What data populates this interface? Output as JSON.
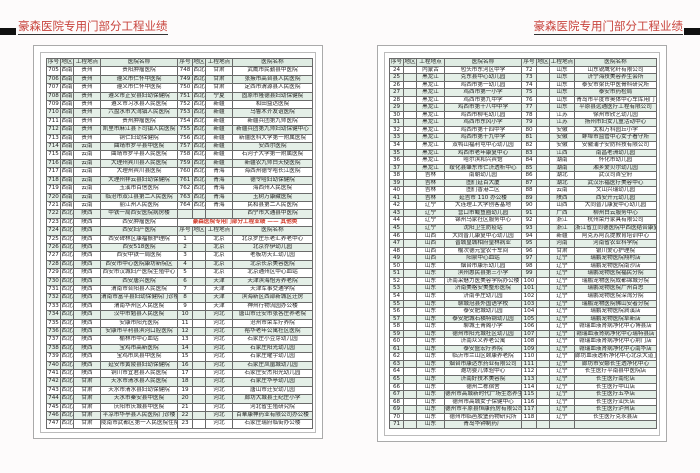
{
  "header": {
    "title_left": "豪森医院专用门部分工程业绩",
    "title_right": "豪森医院专用门部分工程业绩"
  },
  "colors": {
    "title": "#c8433c",
    "row_tint": "#e4efe7",
    "section_title": "#d23a2a"
  },
  "columns": [
    "序号",
    "地区",
    "工程地点",
    "医院名称",
    "序号",
    "地区",
    "工程地点",
    "医院名称"
  ],
  "left_rows": [
    [
      "705",
      "西南",
      "贵州",
      "贵阳肿瘤医院",
      "748",
      "西北",
      "甘肃",
      "武威市民勤县中医院"
    ],
    [
      "706",
      "西南",
      "贵州",
      "遵义市仁怀中医院",
      "749",
      "西北",
      "甘肃",
      "张掖市高台县人民医院"
    ],
    [
      "707",
      "西南",
      "贵州",
      "遵义市仁怀中医院",
      "750",
      "西北",
      "甘肃",
      "定西市渭源县人民医院"
    ],
    [
      "708",
      "西南",
      "贵州",
      "遵义市正安县妇幼保健院",
      "751",
      "西北",
      "宁夏",
      "固原市隆德县妇幼保健院"
    ],
    [
      "709",
      "西南",
      "贵州",
      "遵义市习水县人民医院",
      "752",
      "西北",
      "新疆",
      "和田益达医院"
    ],
    [
      "710",
      "西南",
      "贵州",
      "六盘水市大湾镇人民医院",
      "753",
      "西北",
      "新疆",
      "乌鲁木齐友谊医院"
    ],
    [
      "711",
      "西南",
      "贵州",
      "贵州肿瘤医院",
      "754",
      "西北",
      "新疆",
      "新疆兵团第九师医院"
    ],
    [
      "712",
      "西南",
      "贵州",
      "凯里市麻江县下司镇人民医院",
      "755",
      "西北",
      "新疆",
      "新疆兵团第九师妇幼保健中心"
    ],
    [
      "713",
      "西南",
      "贵州",
      "铜仁妇幼保健院",
      "756",
      "西北",
      "新疆",
      "新疆医科大学第一附属医院"
    ],
    [
      "714",
      "西南",
      "云南",
      "曲靖市罗平县中医院",
      "757",
      "西北",
      "新疆",
      "安西尔医院"
    ],
    [
      "715",
      "西南",
      "云南",
      "曲靖市罗平县人民医院",
      "758",
      "西北",
      "新疆",
      "石河子大学第一附属医院"
    ],
    [
      "716",
      "西南",
      "云南",
      "大理州宾川县人民医院",
      "759",
      "西北",
      "新疆",
      "新疆农九师白天使医院"
    ],
    [
      "717",
      "西南",
      "云南",
      "大理州宾川县医院",
      "760",
      "西北",
      "青海",
      "海西州德令哈长江医院"
    ],
    [
      "718",
      "西南",
      "云南",
      "大理州祥云县妇幼保健院",
      "761",
      "西北",
      "青海",
      "德令哈妇幼保健院"
    ],
    [
      "719",
      "西南",
      "云南",
      "玉溪市百信医院",
      "762",
      "西北",
      "青海",
      "海西州人民医院"
    ],
    [
      "720",
      "西南",
      "云南",
      "临沧市双江县第二人民医院",
      "763",
      "西北",
      "青海",
      "玉树万康藏医院"
    ],
    [
      "721",
      "西南",
      "云南",
      "丽江州人民医院",
      "764",
      "西北",
      "青海",
      "民和县第二人民医院"
    ],
    [
      "722",
      "西北",
      "陕西",
      "中铁一局西安医院病房楼",
      "",
      "",
      "",
      "西宁市大通县中医院"
    ],
    [
      "723",
      "西北",
      "陕西",
      "西安肿瘤医院",
      "豪森医院专用门部分工程业绩 —— 其他类"
    ],
    [
      "724",
      "西北",
      "陕西",
      "西安妇产医院",
      "序号",
      "地区",
      "工程地点",
      "医院名称"
    ],
    [
      "725",
      "西北",
      "陕西",
      "西安碑林区康福振护理院",
      "1",
      "",
      "北京",
      "北京罗庄乐老汇养老中心"
    ],
    [
      "726",
      "西北",
      "陕西",
      "西安518医院",
      "2",
      "",
      "北京",
      "北京乔伊幼儿园"
    ],
    [
      "727",
      "西北",
      "陕西",
      "西安中铁一局医院",
      "3",
      "",
      "北京",
      "老板坊天汇幼儿园"
    ],
    [
      "728",
      "西北",
      "陕西",
      "西安市中心医院康坊新院区",
      "4",
      "",
      "北京",
      "北京长京美容医院"
    ],
    [
      "729",
      "西北",
      "陕西",
      "西安市汉城妇产医院生殖中心",
      "5",
      "",
      "北京",
      "北京通州区中心血站"
    ],
    [
      "730",
      "西北",
      "陕西",
      "西安唐兴医院",
      "6",
      "",
      "天津",
      "天津滨海怡芳养老院"
    ],
    [
      "731",
      "西北",
      "陕西",
      "渭南市合阳县人民医院",
      "7",
      "",
      "天津",
      "天津军事交通学院"
    ],
    [
      "732",
      "西北",
      "陕西",
      "渭南市富平县妇幼保健院门诊楼",
      "8",
      "",
      "天津",
      "滨海新区西部新城区迁房"
    ],
    [
      "733",
      "西北",
      "陕西",
      "渭南华州区人民医院",
      "9",
      "",
      "天津",
      "神州行物流园办公楼"
    ],
    [
      "734",
      "西北",
      "陕西",
      "汉中市勉县人民医院",
      "10",
      "",
      "河北",
      "唐山市迁安市张各庄养老院"
    ],
    [
      "735",
      "西北",
      "陕西",
      "安康市阳光医院",
      "11",
      "",
      "河北",
      "沧州市荣军疗养院"
    ],
    [
      "736",
      "西北",
      "陕西",
      "安康市平利县滨河口腔医院",
      "12",
      "",
      "河北",
      "裕华老年公寓社区医院"
    ],
    [
      "737",
      "西北",
      "陕西",
      "榆林市中心血站",
      "13",
      "",
      "河北",
      "石家庄小豆芽幼儿园"
    ],
    [
      "738",
      "西北",
      "陕西",
      "宝鸡市高新医院",
      "14",
      "",
      "河北",
      "石家庄阳光幼儿园"
    ],
    [
      "739",
      "西北",
      "陕西",
      "宝鸡市凤县中医院",
      "15",
      "",
      "河北",
      "石家庄曜宇幼儿园"
    ],
    [
      "740",
      "西北",
      "陕西",
      "延安市黄陵县妇幼保健院",
      "16",
      "",
      "河北",
      "石家庄凤凰城幼儿园"
    ],
    [
      "741",
      "西北",
      "陕西",
      "铜川市宜君县人民医院",
      "17",
      "",
      "河北",
      "石家庄安杰阳光幼儿园"
    ],
    [
      "742",
      "西北",
      "甘肃",
      "天水市清水县人民医院",
      "18",
      "",
      "河北",
      "石家庄华亭幼儿园"
    ],
    [
      "743",
      "西北",
      "甘肃",
      "天水市清水县妇幼保健院",
      "19",
      "",
      "河北",
      "唐山市迁安幼儿园"
    ],
    [
      "744",
      "西北",
      "甘肃",
      "天水市秦安县中医院",
      "20",
      "",
      "河北",
      "廊坊大城县王纪庄小学"
    ],
    [
      "745",
      "西北",
      "甘肃",
      "庆阳市庆城县中医院",
      "21",
      "",
      "河北",
      "河北省生殖研究院"
    ],
    [
      "746",
      "西北",
      "甘肃",
      "平凉市华亭县人民医院门诊楼",
      "22",
      "",
      "河北",
      "百華康神药业有限公司办公楼"
    ],
    [
      "747",
      "西北",
      "甘肃",
      "陇南市武都区第一人民医院住院综合楼",
      "23",
      "",
      "河北",
      "石家庄瑞府临街办公楼"
    ]
  ],
  "right_rows": [
    [
      "24",
      "",
      "内蒙古",
      "包头市东河区中学",
      "72",
      "",
      "山东",
      "山东锐鹰化纤有限公司"
    ],
    [
      "25",
      "",
      "黑龙江",
      "克东县中心幼儿园",
      "73",
      "",
      "山东",
      "济宁海技美容养生会所"
    ],
    [
      "26",
      "",
      "黑龙江",
      "鸡西市第一幼儿园",
      "74",
      "",
      "山东",
      "泰安市梁氏中医骨科研究所"
    ],
    [
      "27",
      "",
      "黑龙江",
      "鸡西市第一小学",
      "75",
      "",
      "山东",
      "泰安市药检局"
    ],
    [
      "28",
      "",
      "黑龙江",
      "鸡西市第九中学",
      "76",
      "",
      "山东",
      "青岛市平度市奥体中心车库用门"
    ],
    [
      "29",
      "",
      "黑龙江",
      "鸡西市第十八中中学",
      "77",
      "",
      "山东",
      "平原县远通医疗工程有限公司"
    ],
    [
      "30",
      "",
      "黑龙江",
      "鸡西市柳毛幼儿园",
      "78",
      "",
      "江苏",
      "徐州市欣艺幼儿园"
    ],
    [
      "31",
      "",
      "黑龙江",
      "鸡西市东风小学",
      "79",
      "",
      "江苏",
      "扬州市妇女儿童活动中心"
    ],
    [
      "32",
      "",
      "黑龙江",
      "鸡西市第十四中学",
      "80",
      "",
      "安徽",
      "太和万科园丘小学"
    ],
    [
      "33",
      "",
      "黑龙江",
      "鸡西市第十九中学",
      "81",
      "",
      "安徽",
      "蚌埠市监管中心女子看守所"
    ],
    [
      "34",
      "",
      "黑龙江",
      "双鸭山福利屯中心幼儿园",
      "82",
      "",
      "安徽",
      "安徽浦子安防科技有限公司"
    ],
    [
      "35",
      "",
      "黑龙江",
      "鸡西市老年康复中心",
      "83",
      "",
      "江西",
      "南昌老洲幼儿园"
    ],
    [
      "36",
      "",
      "黑龙江",
      "哈尔滨和兴宾馆",
      "84",
      "",
      "湖南",
      "怀化市幼儿园"
    ],
    [
      "37",
      "",
      "黑龙江",
      "绥化县肇东市仁济透析中心",
      "85",
      "",
      "湖南",
      "湘乡爱贝尔幼儿园"
    ],
    [
      "38",
      "",
      "吉林",
      "南朝幼儿园",
      "86",
      "",
      "湖北",
      "武汉司首空府"
    ],
    [
      "39",
      "",
      "吉林",
      "图们延百大厦",
      "87",
      "",
      "湖北",
      "武汉乐福医疗美容中心"
    ],
    [
      "40",
      "",
      "吉林",
      "图们香港二区",
      "88",
      "",
      "云南",
      "文山兴瑞幼儿园"
    ],
    [
      "41",
      "",
      "吉林",
      "延吉市 110 办公楼",
      "89",
      "",
      "陕西",
      "西安开元幼儿园"
    ],
    [
      "42",
      "",
      "辽宁",
      "大连理工大学创客基地",
      "90",
      "",
      "山西",
      "大同晋儿康复中心幼儿园"
    ],
    [
      "43",
      "",
      "辽宁",
      "营口市鲅鱼圈幼儿园",
      "91",
      "",
      "广西",
      "柳州白云服务中心"
    ],
    [
      "44",
      "",
      "辽宁",
      "锦州乌家社区服务中心",
      "92",
      "",
      "浙江",
      "杭州荣丹家具有限公司"
    ],
    [
      "45",
      "",
      "辽宁",
      "沈阳卫生防疫站",
      "93",
      "",
      "浙江",
      "浙江省立同德医院中西医结合康复中心"
    ],
    [
      "46",
      "",
      "山西",
      "大同晋儿康复中心幼儿园",
      "94",
      "",
      "新疆",
      "阿克苏阿瓦提教育培训中心"
    ],
    [
      "47",
      "",
      "山西",
      "晋城皇城相府皇林病业",
      "95",
      "",
      "河南",
      "河南省农业科学院"
    ],
    [
      "48",
      "",
      "山西",
      "榆次德元堂农干车间",
      "96",
      "",
      "甘肃",
      "银川爱心护理院"
    ],
    [
      "49",
      "",
      "山西",
      "阳泉中心血站",
      "97",
      "",
      "辽宁",
      "瑞鹏宠物医院翔村店"
    ],
    [
      "50",
      "",
      "山东",
      "烟台市康乐幼儿园",
      "98",
      "",
      "辽宁",
      "瑞鹏宠物医院南沙店"
    ],
    [
      "51",
      "",
      "山东",
      "滨州惠民县第三小学",
      "99",
      "",
      "辽宁",
      "瑞鹏宠物医院福民分院"
    ],
    [
      "52",
      "",
      "山东",
      "济南采魅力医美容学院办公楼",
      "100",
      "",
      "辽宁",
      "瑞鹏宠物医院成都锦城分院"
    ],
    [
      "53",
      "",
      "山东",
      "济南美格安美整形医院",
      "101",
      "",
      "辽宁",
      "瑞鹏宠物医院广州百思"
    ],
    [
      "54",
      "",
      "山东",
      "济南李庄幼儿园",
      "102",
      "",
      "辽宁",
      "瑞鹏宠物医院深湾分院"
    ],
    [
      "55",
      "",
      "山东",
      "聊城冠县外国语学校",
      "103",
      "",
      "辽宁",
      "瑞鹏宠物医院佛山安者分院"
    ],
    [
      "56",
      "",
      "山东",
      "泰安肥城幼儿园",
      "104",
      "",
      "辽宁",
      "瑞鹏宠物医院涧溪店"
    ],
    [
      "57",
      "",
      "山东",
      "泰安肥城石横特钢幼儿园",
      "105",
      "",
      "辽宁",
      "瑞鹏宠物医院阜新店"
    ],
    [
      "58",
      "",
      "山东",
      "聊城王菁阁小学",
      "106",
      "",
      "辽宁",
      "赣瑞血液肾病净化中心博县店"
    ],
    [
      "59",
      "",
      "山东",
      "德州市阳光城社区幼儿园",
      "107",
      "",
      "辽宁",
      "赣瑞血液肾病净化中心瑞特县店"
    ],
    [
      "60",
      "",
      "山东",
      "济南众义养老公寓",
      "108",
      "",
      "辽宁",
      "赣瑞血液肾病净化中心荆门店"
    ],
    [
      "61",
      "",
      "山东",
      "泰安盛宏疗养院",
      "109",
      "",
      "辽宁",
      "赣瑞血液肾病净化中心南华店"
    ],
    [
      "62",
      "",
      "山东",
      "临沂市兰山区颐康养老院",
      "110",
      "",
      "辽宁",
      "廊坊血液透析净化中心北京大道卫生服务站"
    ],
    [
      "63",
      "",
      "山东",
      "烟台市康达东药业有限公司",
      "111",
      "",
      "辽宁",
      "廊坊市安娜长生透净化中心"
    ],
    [
      "64",
      "",
      "山东",
      "潍坊婴儿体验中心",
      "112",
      "",
      "辽宁",
      "长生医疗平南县中医院店"
    ],
    [
      "65",
      "",
      "山东",
      "济南好技术美容院",
      "113",
      "",
      "辽宁",
      "长生医疗南伦店"
    ],
    [
      "66",
      "",
      "山东",
      "德州二栋宿舍",
      "114",
      "",
      "辽宁",
      "长生医疗中山店"
    ],
    [
      "67",
      "",
      "山东",
      "德州市高城新时代广场生态养生馆",
      "115",
      "",
      "辽宁",
      "长生医疗五华店"
    ],
    [
      "68",
      "",
      "山东",
      "德州市高城女子保健中心",
      "116",
      "",
      "辽宁",
      "长生医疗汕头店"
    ],
    [
      "69",
      "",
      "山东",
      "德州市平原县恒康药房有限公司",
      "117",
      "",
      "辽宁",
      "长生医疗泸州店"
    ],
    [
      "70",
      "",
      "山东",
      "德州市临邑胶堡药物研究所",
      "118",
      "",
      "辽宁",
      "长生医疗克永县店"
    ],
    [
      "71",
      "",
      "山东",
      "青岛华钟制药厂",
      "",
      "",
      "",
      ""
    ]
  ]
}
